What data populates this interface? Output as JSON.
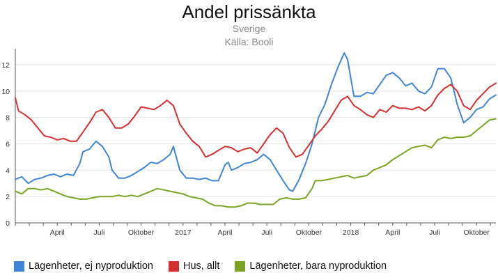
{
  "chart_data": {
    "type": "line",
    "title": "Andel prissänkta",
    "subtitle": [
      "Sverige",
      "Källa: Booli"
    ],
    "xlabel": "",
    "ylabel": "",
    "ylim": [
      0,
      13
    ],
    "yticks": [
      0,
      2,
      4,
      6,
      8,
      10,
      12
    ],
    "grid": true,
    "legend_position": "bottom-left",
    "x_tick_labels": [
      {
        "label": "April",
        "t": 13
      },
      {
        "label": "Juli",
        "t": 26
      },
      {
        "label": "Oktober",
        "t": 39
      },
      {
        "label": "2017",
        "t": 52
      },
      {
        "label": "April",
        "t": 65
      },
      {
        "label": "Juli",
        "t": 78
      },
      {
        "label": "Oktober",
        "t": 91
      },
      {
        "label": "2018",
        "t": 104
      },
      {
        "label": "April",
        "t": 117
      },
      {
        "label": "Juli",
        "t": 130
      },
      {
        "label": "Oktober",
        "t": 143
      }
    ],
    "series": [
      {
        "name": "Lägenheter, ej nyproduktion",
        "color": "#3f85d6",
        "points": [
          [
            0,
            3.3
          ],
          [
            2,
            3.5
          ],
          [
            4,
            3.0
          ],
          [
            6,
            3.3
          ],
          [
            8,
            3.4
          ],
          [
            10,
            3.6
          ],
          [
            12,
            3.7
          ],
          [
            14,
            3.5
          ],
          [
            16,
            3.7
          ],
          [
            18,
            3.6
          ],
          [
            20,
            4.5
          ],
          [
            21,
            5.4
          ],
          [
            23,
            5.6
          ],
          [
            25,
            6.2
          ],
          [
            27,
            5.8
          ],
          [
            29,
            5.0
          ],
          [
            30,
            4.0
          ],
          [
            32,
            3.4
          ],
          [
            34,
            3.4
          ],
          [
            36,
            3.6
          ],
          [
            38,
            3.9
          ],
          [
            40,
            4.2
          ],
          [
            42,
            4.6
          ],
          [
            44,
            4.5
          ],
          [
            46,
            4.8
          ],
          [
            48,
            5.2
          ],
          [
            49,
            5.8
          ],
          [
            51,
            4.0
          ],
          [
            53,
            3.4
          ],
          [
            55,
            3.4
          ],
          [
            57,
            3.3
          ],
          [
            59,
            3.4
          ],
          [
            61,
            3.2
          ],
          [
            63,
            3.2
          ],
          [
            65,
            4.4
          ],
          [
            66,
            4.6
          ],
          [
            67,
            4.0
          ],
          [
            69,
            4.2
          ],
          [
            71,
            4.5
          ],
          [
            73,
            4.6
          ],
          [
            75,
            4.8
          ],
          [
            77,
            5.2
          ],
          [
            79,
            4.8
          ],
          [
            81,
            4.0
          ],
          [
            83,
            3.2
          ],
          [
            85,
            2.5
          ],
          [
            86,
            2.4
          ],
          [
            88,
            3.3
          ],
          [
            90,
            4.5
          ],
          [
            92,
            6.0
          ],
          [
            94,
            8.0
          ],
          [
            96,
            9.0
          ],
          [
            98,
            10.5
          ],
          [
            100,
            11.8
          ],
          [
            102,
            12.9
          ],
          [
            103,
            12.4
          ],
          [
            105,
            9.6
          ],
          [
            107,
            9.6
          ],
          [
            109,
            9.9
          ],
          [
            111,
            9.8
          ],
          [
            113,
            10.5
          ],
          [
            115,
            11.2
          ],
          [
            117,
            11.4
          ],
          [
            119,
            11.0
          ],
          [
            121,
            10.4
          ],
          [
            123,
            10.6
          ],
          [
            125,
            10.0
          ],
          [
            127,
            9.8
          ],
          [
            129,
            10.3
          ],
          [
            131,
            11.7
          ],
          [
            133,
            11.7
          ],
          [
            135,
            11.0
          ],
          [
            137,
            9.0
          ],
          [
            139,
            7.6
          ],
          [
            141,
            8.0
          ],
          [
            143,
            8.6
          ],
          [
            145,
            8.8
          ],
          [
            147,
            9.4
          ],
          [
            149,
            9.7
          ]
        ]
      },
      {
        "name": "Hus, allt",
        "color": "#d32f2f",
        "points": [
          [
            0,
            9.5
          ],
          [
            1,
            8.5
          ],
          [
            3,
            8.2
          ],
          [
            5,
            7.8
          ],
          [
            7,
            7.2
          ],
          [
            9,
            6.6
          ],
          [
            11,
            6.5
          ],
          [
            13,
            6.3
          ],
          [
            15,
            6.4
          ],
          [
            17,
            6.2
          ],
          [
            19,
            6.2
          ],
          [
            21,
            6.9
          ],
          [
            23,
            7.6
          ],
          [
            25,
            8.4
          ],
          [
            27,
            8.6
          ],
          [
            29,
            8.0
          ],
          [
            31,
            7.2
          ],
          [
            33,
            7.2
          ],
          [
            35,
            7.5
          ],
          [
            37,
            8.1
          ],
          [
            39,
            8.8
          ],
          [
            41,
            8.7
          ],
          [
            43,
            8.6
          ],
          [
            45,
            8.9
          ],
          [
            47,
            9.3
          ],
          [
            49,
            8.9
          ],
          [
            51,
            7.5
          ],
          [
            53,
            6.8
          ],
          [
            55,
            6.2
          ],
          [
            57,
            5.8
          ],
          [
            59,
            5.0
          ],
          [
            61,
            5.2
          ],
          [
            63,
            5.5
          ],
          [
            65,
            5.8
          ],
          [
            67,
            5.7
          ],
          [
            69,
            5.4
          ],
          [
            71,
            5.6
          ],
          [
            73,
            5.7
          ],
          [
            75,
            5.3
          ],
          [
            77,
            6.0
          ],
          [
            79,
            6.7
          ],
          [
            81,
            7.2
          ],
          [
            83,
            6.8
          ],
          [
            85,
            5.7
          ],
          [
            87,
            5.0
          ],
          [
            89,
            5.2
          ],
          [
            91,
            5.9
          ],
          [
            93,
            6.6
          ],
          [
            95,
            7.1
          ],
          [
            97,
            7.7
          ],
          [
            99,
            8.5
          ],
          [
            101,
            9.3
          ],
          [
            103,
            9.6
          ],
          [
            105,
            8.9
          ],
          [
            107,
            8.6
          ],
          [
            109,
            8.2
          ],
          [
            111,
            8.0
          ],
          [
            113,
            8.6
          ],
          [
            115,
            8.4
          ],
          [
            117,
            8.9
          ],
          [
            119,
            8.7
          ],
          [
            121,
            8.7
          ],
          [
            123,
            8.6
          ],
          [
            125,
            8.8
          ],
          [
            127,
            8.5
          ],
          [
            129,
            8.9
          ],
          [
            131,
            9.7
          ],
          [
            133,
            10.2
          ],
          [
            135,
            10.5
          ],
          [
            137,
            10.0
          ],
          [
            139,
            8.9
          ],
          [
            141,
            8.6
          ],
          [
            143,
            9.3
          ],
          [
            145,
            9.8
          ],
          [
            147,
            10.3
          ],
          [
            149,
            10.6
          ]
        ]
      },
      {
        "name": "Lägenheter, bara nyproduktion",
        "color": "#7ba323",
        "points": [
          [
            0,
            2.4
          ],
          [
            2,
            2.2
          ],
          [
            4,
            2.6
          ],
          [
            6,
            2.6
          ],
          [
            8,
            2.5
          ],
          [
            10,
            2.6
          ],
          [
            12,
            2.4
          ],
          [
            14,
            2.2
          ],
          [
            16,
            2.0
          ],
          [
            18,
            1.9
          ],
          [
            20,
            1.8
          ],
          [
            22,
            1.8
          ],
          [
            24,
            1.9
          ],
          [
            26,
            2.0
          ],
          [
            28,
            2.0
          ],
          [
            30,
            2.0
          ],
          [
            32,
            2.1
          ],
          [
            34,
            2.0
          ],
          [
            36,
            2.1
          ],
          [
            38,
            2.0
          ],
          [
            40,
            2.2
          ],
          [
            42,
            2.4
          ],
          [
            44,
            2.6
          ],
          [
            46,
            2.5
          ],
          [
            48,
            2.4
          ],
          [
            50,
            2.3
          ],
          [
            52,
            2.2
          ],
          [
            54,
            2.0
          ],
          [
            56,
            1.9
          ],
          [
            58,
            1.8
          ],
          [
            60,
            1.5
          ],
          [
            62,
            1.3
          ],
          [
            64,
            1.3
          ],
          [
            66,
            1.2
          ],
          [
            68,
            1.2
          ],
          [
            70,
            1.3
          ],
          [
            72,
            1.5
          ],
          [
            74,
            1.5
          ],
          [
            76,
            1.4
          ],
          [
            78,
            1.4
          ],
          [
            80,
            1.4
          ],
          [
            82,
            1.8
          ],
          [
            84,
            1.9
          ],
          [
            86,
            1.8
          ],
          [
            88,
            1.8
          ],
          [
            90,
            1.9
          ],
          [
            92,
            2.6
          ],
          [
            93,
            3.2
          ],
          [
            95,
            3.2
          ],
          [
            97,
            3.3
          ],
          [
            99,
            3.4
          ],
          [
            101,
            3.5
          ],
          [
            103,
            3.6
          ],
          [
            105,
            3.4
          ],
          [
            107,
            3.5
          ],
          [
            109,
            3.6
          ],
          [
            111,
            4.0
          ],
          [
            113,
            4.2
          ],
          [
            115,
            4.4
          ],
          [
            117,
            4.8
          ],
          [
            119,
            5.1
          ],
          [
            121,
            5.4
          ],
          [
            123,
            5.7
          ],
          [
            125,
            5.8
          ],
          [
            127,
            5.9
          ],
          [
            129,
            5.7
          ],
          [
            131,
            6.3
          ],
          [
            133,
            6.5
          ],
          [
            135,
            6.4
          ],
          [
            137,
            6.5
          ],
          [
            139,
            6.5
          ],
          [
            141,
            6.6
          ],
          [
            143,
            7.0
          ],
          [
            145,
            7.4
          ],
          [
            147,
            7.8
          ],
          [
            149,
            7.9
          ]
        ]
      }
    ]
  }
}
